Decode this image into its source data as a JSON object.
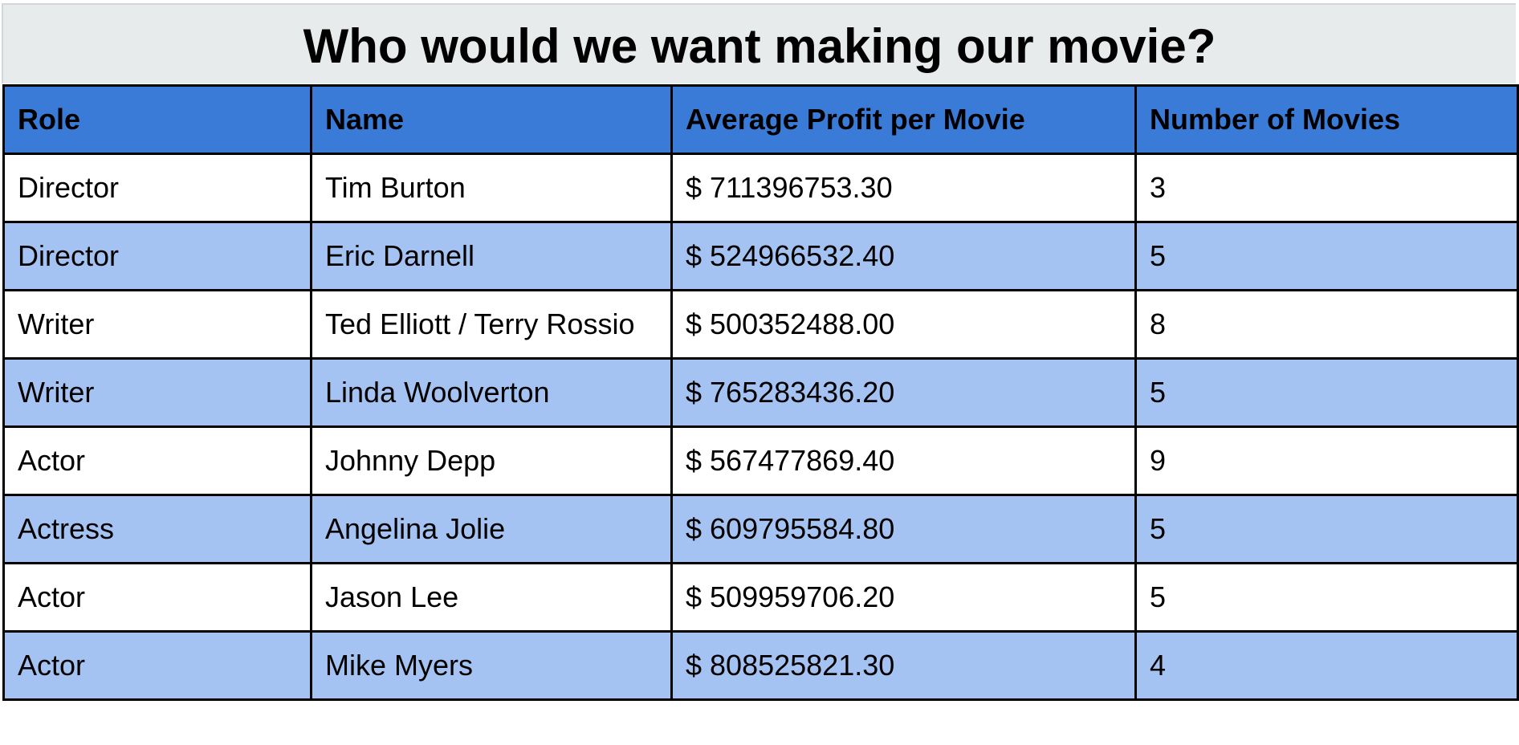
{
  "chart_data": {
    "type": "table",
    "title": "Who would we want making our movie?",
    "columns": [
      "Role",
      "Name",
      "Average Profit per Movie",
      "Number of Movies"
    ],
    "rows": [
      [
        "Director",
        "Tim Burton",
        "$ 711396753.30",
        "3"
      ],
      [
        "Director",
        "Eric Darnell",
        "$ 524966532.40",
        "5"
      ],
      [
        "Writer",
        "Ted Elliott / Terry Rossio",
        "$ 500352488.00",
        "8"
      ],
      [
        "Writer",
        "Linda Woolverton",
        "$ 765283436.20",
        "5"
      ],
      [
        "Actor",
        "Johnny Depp",
        "$ 567477869.40",
        "9"
      ],
      [
        "Actress",
        "Angelina Jolie",
        "$ 609795584.80",
        "5"
      ],
      [
        "Actor",
        "Jason Lee",
        "$ 509959706.20",
        "5"
      ],
      [
        "Actor",
        "Mike Myers",
        "$ 808525821.30",
        "4"
      ]
    ]
  },
  "colors": {
    "header_background": "#3b7bd8",
    "band_row_background": "#a5c3f2",
    "plain_row_background": "#ffffff",
    "title_band_background": "#e8ebec",
    "border": "#000000"
  }
}
